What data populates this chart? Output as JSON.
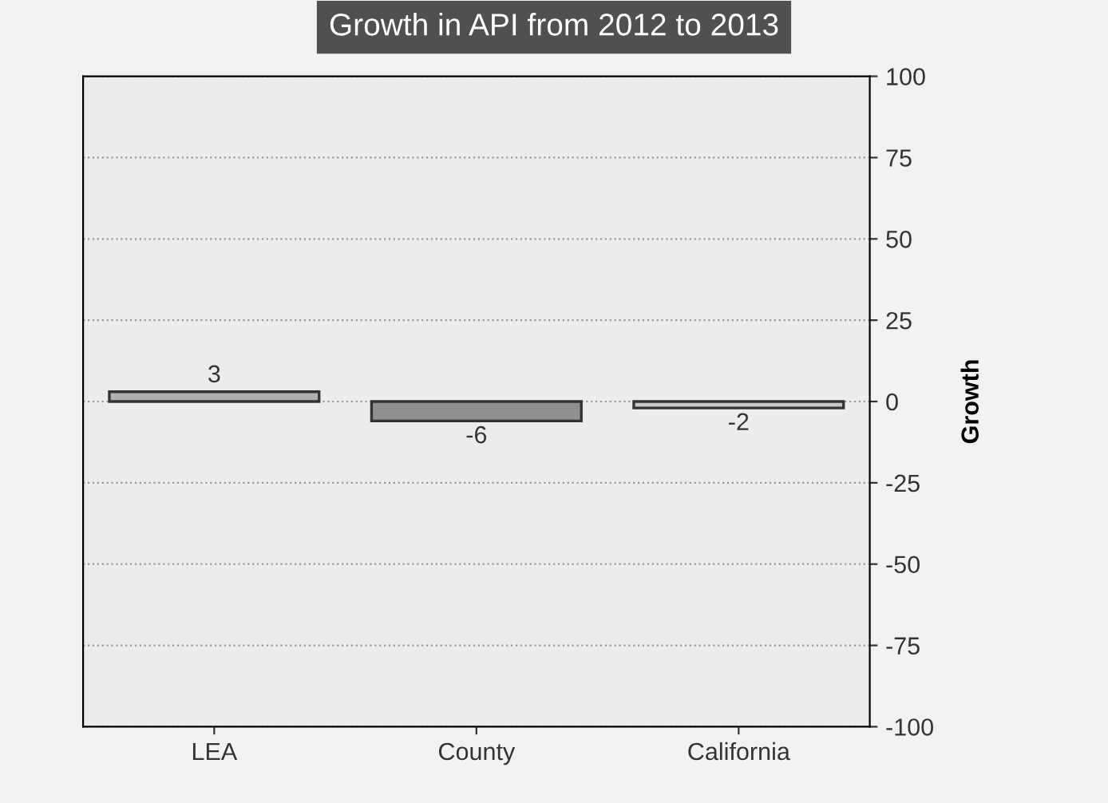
{
  "chart_data": {
    "type": "bar",
    "title": "Growth in API from 2012 to 2013",
    "ylabel": "Growth",
    "categories": [
      "LEA",
      "County",
      "California"
    ],
    "values": [
      3,
      -6,
      -2
    ],
    "colors": [
      "#b0b0b0",
      "#909090",
      "#c8c8c8"
    ],
    "ylim": [
      -100,
      100
    ],
    "yticks": [
      -100,
      -75,
      -50,
      -25,
      0,
      25,
      50,
      75,
      100
    ],
    "grid": "y",
    "data_labels": true
  }
}
